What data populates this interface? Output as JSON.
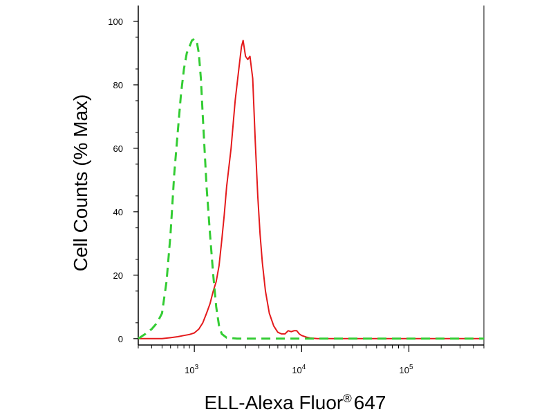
{
  "chart_data": {
    "type": "line",
    "title": "",
    "xlabel": "ELL-Alexa Fluor",
    "xlabel_mark": "®",
    "xlabel_suffix": "647",
    "ylabel": "Cell Counts (% Max)",
    "xscale": "log",
    "xlim": [
      300,
      500000
    ],
    "ylim": [
      -2,
      105
    ],
    "grid": false,
    "legend": "none",
    "y_ticks": [
      0,
      20,
      40,
      60,
      80,
      100
    ],
    "y_tick_labels": [
      "0",
      "20",
      "40",
      "60",
      "80",
      "100"
    ],
    "x_major_ticks": [
      1000,
      10000,
      100000
    ],
    "x_tick_labels": [
      {
        "base": "10",
        "exp": "3"
      },
      {
        "base": "10",
        "exp": "4"
      },
      {
        "base": "10",
        "exp": "5"
      }
    ],
    "series": [
      {
        "color": "#e41a1c",
        "dash": "solid",
        "x": [
          300,
          500,
          600,
          700,
          800,
          900,
          1000,
          1100,
          1200,
          1300,
          1400,
          1500,
          1600,
          1700,
          1800,
          1900,
          2000,
          2200,
          2400,
          2600,
          2750,
          2850,
          3000,
          3150,
          3300,
          3500,
          3700,
          3900,
          4100,
          4300,
          4600,
          5000,
          5500,
          6000,
          6500,
          7000,
          7500,
          8000,
          8500,
          9000,
          9500,
          10000,
          11000,
          12000,
          14000,
          20000,
          50000,
          100000,
          300000,
          500000
        ],
        "y": [
          0,
          0,
          0.3,
          0.6,
          1,
          1.3,
          1.8,
          3,
          5,
          8,
          11,
          15,
          18,
          23,
          31,
          39,
          48,
          60,
          75,
          85,
          92,
          94,
          89,
          88,
          89,
          82,
          62,
          45,
          33,
          24,
          15,
          8,
          4,
          2,
          1.5,
          1.5,
          2.5,
          2.2,
          2.5,
          2.5,
          1.5,
          1,
          0.5,
          0.2,
          0,
          0,
          0,
          0,
          0,
          0
        ]
      },
      {
        "color": "#33cc33",
        "dash": "dashed",
        "x": [
          300,
          350,
          400,
          450,
          500,
          550,
          600,
          650,
          700,
          750,
          800,
          850,
          900,
          950,
          1000,
          1050,
          1100,
          1150,
          1200,
          1300,
          1400,
          1500,
          1600,
          1700,
          1800,
          2000,
          2500,
          3000,
          5000,
          10000,
          100000,
          500000
        ],
        "y": [
          0,
          1.5,
          3,
          5,
          8,
          18,
          33,
          52,
          65,
          77,
          85,
          90,
          92,
          94,
          94.5,
          94,
          90,
          82,
          70,
          48,
          33,
          20,
          10,
          4,
          1.5,
          0.3,
          0,
          0,
          0,
          0,
          0,
          0
        ]
      }
    ]
  }
}
